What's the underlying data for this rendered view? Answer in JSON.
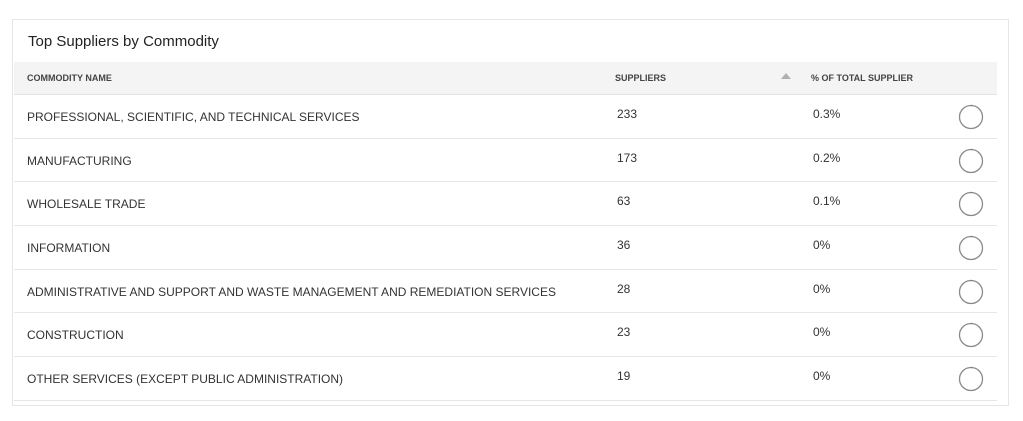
{
  "panel": {
    "title": "Top Suppliers by Commodity"
  },
  "table": {
    "columns": {
      "name": "COMMODITY NAME",
      "suppliers": "SUPPLIERS",
      "pct": "% OF TOTAL SUPPLIER"
    },
    "sort": {
      "column": "suppliers",
      "direction": "descending",
      "icon": "sort-arrow-up-icon"
    },
    "rows": [
      {
        "name": "PROFESSIONAL, SCIENTIFIC, AND TECHNICAL SERVICES",
        "suppliers": "233",
        "pct": "0.3%",
        "pct_value": 0.3
      },
      {
        "name": "MANUFACTURING",
        "suppliers": "173",
        "pct": "0.2%",
        "pct_value": 0.2
      },
      {
        "name": "WHOLESALE TRADE",
        "suppliers": "63",
        "pct": "0.1%",
        "pct_value": 0.1
      },
      {
        "name": "INFORMATION",
        "suppliers": "36",
        "pct": "0%",
        "pct_value": 0
      },
      {
        "name": "ADMINISTRATIVE AND SUPPORT AND WASTE MANAGEMENT AND REMEDIATION SERVICES",
        "suppliers": "28",
        "pct": "0%",
        "pct_value": 0
      },
      {
        "name": "CONSTRUCTION",
        "suppliers": "23",
        "pct": "0%",
        "pct_value": 0
      },
      {
        "name": "OTHER SERVICES (EXCEPT PUBLIC ADMINISTRATION)",
        "suppliers": "19",
        "pct": "0%",
        "pct_value": 0
      }
    ]
  },
  "colors": {
    "ring_track": "#8a8a8a",
    "ring_fill": "#555555",
    "header_bg": "#f4f4f4"
  }
}
